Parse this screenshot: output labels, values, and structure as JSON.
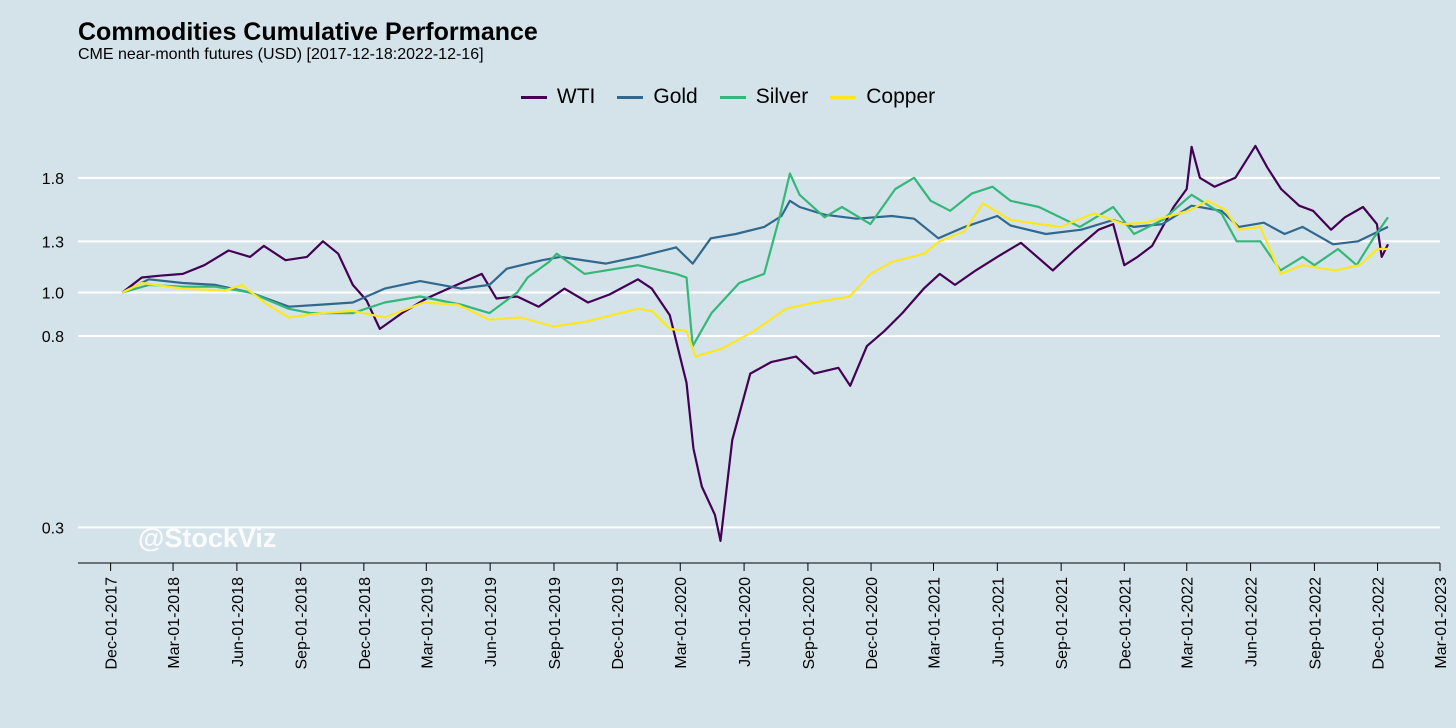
{
  "chart_data": {
    "type": "line",
    "title": "Commodities Cumulative Performance",
    "subtitle": "CME near-month futures (USD) [2017-12-18:2022-12-16]",
    "xlabel": "",
    "ylabel": "",
    "y_scale": "log",
    "ylim": [
      0.25,
      2.3
    ],
    "y_ticks": [
      0.3,
      0.8,
      1.0,
      1.3,
      1.8
    ],
    "y_tick_labels": [
      "0.3",
      "0.8",
      "1.0",
      "1.3",
      "1.8"
    ],
    "xlim": [
      "2017-10-15",
      "2023-03-01"
    ],
    "x_ticks": [
      "2017-12-01",
      "2018-03-01",
      "2018-06-01",
      "2018-09-01",
      "2018-12-01",
      "2019-03-01",
      "2019-06-01",
      "2019-09-01",
      "2019-12-01",
      "2020-03-01",
      "2020-06-01",
      "2020-09-01",
      "2020-12-01",
      "2021-03-01",
      "2021-06-01",
      "2021-09-01",
      "2021-12-01",
      "2022-03-01",
      "2022-06-01",
      "2022-09-01",
      "2022-12-01",
      "2023-03-01"
    ],
    "x_tick_labels": [
      "Dec-01-2017",
      "Mar-01-2018",
      "Jun-01-2018",
      "Sep-01-2018",
      "Dec-01-2018",
      "Mar-01-2019",
      "Jun-01-2019",
      "Sep-01-2019",
      "Dec-01-2019",
      "Mar-01-2020",
      "Jun-01-2020",
      "Sep-01-2020",
      "Dec-01-2020",
      "Mar-01-2021",
      "Jun-01-2021",
      "Sep-01-2021",
      "Dec-01-2021",
      "Mar-01-2022",
      "Jun-01-2022",
      "Sep-01-2022",
      "Dec-01-2022",
      "Mar-01-2023"
    ],
    "grid": "horizontal",
    "legend_position": "top",
    "watermark": "@StockViz",
    "series": [
      {
        "name": "WTI",
        "color": "#440154",
        "points": [
          [
            "2017-12-18",
            1.0
          ],
          [
            "2018-01-15",
            1.08
          ],
          [
            "2018-02-10",
            1.09
          ],
          [
            "2018-03-15",
            1.1
          ],
          [
            "2018-04-15",
            1.15
          ],
          [
            "2018-05-20",
            1.24
          ],
          [
            "2018-06-20",
            1.2
          ],
          [
            "2018-07-10",
            1.27
          ],
          [
            "2018-08-10",
            1.18
          ],
          [
            "2018-09-10",
            1.2
          ],
          [
            "2018-10-03",
            1.3
          ],
          [
            "2018-10-25",
            1.22
          ],
          [
            "2018-11-15",
            1.04
          ],
          [
            "2018-12-05",
            0.96
          ],
          [
            "2018-12-24",
            0.83
          ],
          [
            "2019-01-25",
            0.9
          ],
          [
            "2019-03-01",
            0.97
          ],
          [
            "2019-04-20",
            1.05
          ],
          [
            "2019-05-20",
            1.1
          ],
          [
            "2019-06-10",
            0.97
          ],
          [
            "2019-07-10",
            0.98
          ],
          [
            "2019-08-10",
            0.93
          ],
          [
            "2019-09-16",
            1.02
          ],
          [
            "2019-10-20",
            0.95
          ],
          [
            "2019-11-20",
            0.99
          ],
          [
            "2019-12-31",
            1.07
          ],
          [
            "2020-01-20",
            1.02
          ],
          [
            "2020-02-15",
            0.89
          ],
          [
            "2020-03-10",
            0.63
          ],
          [
            "2020-03-20",
            0.45
          ],
          [
            "2020-04-01",
            0.37
          ],
          [
            "2020-04-20",
            0.32
          ],
          [
            "2020-04-28",
            0.28
          ],
          [
            "2020-05-15",
            0.47
          ],
          [
            "2020-06-10",
            0.66
          ],
          [
            "2020-07-10",
            0.7
          ],
          [
            "2020-08-15",
            0.72
          ],
          [
            "2020-09-10",
            0.66
          ],
          [
            "2020-10-15",
            0.68
          ],
          [
            "2020-11-01",
            0.62
          ],
          [
            "2020-11-25",
            0.76
          ],
          [
            "2020-12-20",
            0.82
          ],
          [
            "2021-01-15",
            0.9
          ],
          [
            "2021-02-15",
            1.02
          ],
          [
            "2021-03-10",
            1.1
          ],
          [
            "2021-04-01",
            1.04
          ],
          [
            "2021-05-01",
            1.12
          ],
          [
            "2021-06-01",
            1.2
          ],
          [
            "2021-07-05",
            1.29
          ],
          [
            "2021-08-20",
            1.12
          ],
          [
            "2021-09-20",
            1.24
          ],
          [
            "2021-10-25",
            1.38
          ],
          [
            "2021-11-15",
            1.42
          ],
          [
            "2021-12-01",
            1.15
          ],
          [
            "2021-12-20",
            1.2
          ],
          [
            "2022-01-10",
            1.27
          ],
          [
            "2022-02-10",
            1.55
          ],
          [
            "2022-03-01",
            1.7
          ],
          [
            "2022-03-08",
            2.11
          ],
          [
            "2022-03-20",
            1.8
          ],
          [
            "2022-04-10",
            1.72
          ],
          [
            "2022-05-10",
            1.8
          ],
          [
            "2022-06-08",
            2.12
          ],
          [
            "2022-06-25",
            1.9
          ],
          [
            "2022-07-15",
            1.7
          ],
          [
            "2022-08-10",
            1.56
          ],
          [
            "2022-08-30",
            1.52
          ],
          [
            "2022-09-25",
            1.38
          ],
          [
            "2022-10-15",
            1.47
          ],
          [
            "2022-11-10",
            1.55
          ],
          [
            "2022-11-30",
            1.42
          ],
          [
            "2022-12-07",
            1.2
          ],
          [
            "2022-12-16",
            1.28
          ]
        ]
      },
      {
        "name": "Gold",
        "color": "#30688e",
        "points": [
          [
            "2017-12-18",
            1.0
          ],
          [
            "2018-01-25",
            1.07
          ],
          [
            "2018-03-15",
            1.05
          ],
          [
            "2018-05-01",
            1.04
          ],
          [
            "2018-06-20",
            1.0
          ],
          [
            "2018-08-15",
            0.93
          ],
          [
            "2018-10-01",
            0.94
          ],
          [
            "2018-11-15",
            0.95
          ],
          [
            "2018-12-31",
            1.02
          ],
          [
            "2019-02-20",
            1.06
          ],
          [
            "2019-04-20",
            1.02
          ],
          [
            "2019-05-31",
            1.04
          ],
          [
            "2019-06-25",
            1.13
          ],
          [
            "2019-08-15",
            1.18
          ],
          [
            "2019-09-10",
            1.2
          ],
          [
            "2019-11-15",
            1.16
          ],
          [
            "2019-12-31",
            1.2
          ],
          [
            "2020-02-24",
            1.26
          ],
          [
            "2020-03-19",
            1.16
          ],
          [
            "2020-04-14",
            1.32
          ],
          [
            "2020-05-20",
            1.35
          ],
          [
            "2020-06-30",
            1.4
          ],
          [
            "2020-07-25",
            1.48
          ],
          [
            "2020-08-06",
            1.6
          ],
          [
            "2020-08-20",
            1.55
          ],
          [
            "2020-09-25",
            1.49
          ],
          [
            "2020-11-10",
            1.46
          ],
          [
            "2020-12-31",
            1.48
          ],
          [
            "2021-02-01",
            1.46
          ],
          [
            "2021-03-08",
            1.32
          ],
          [
            "2021-04-15",
            1.4
          ],
          [
            "2021-06-01",
            1.48
          ],
          [
            "2021-06-20",
            1.41
          ],
          [
            "2021-08-10",
            1.35
          ],
          [
            "2021-09-30",
            1.38
          ],
          [
            "2021-11-15",
            1.45
          ],
          [
            "2021-12-15",
            1.4
          ],
          [
            "2022-01-25",
            1.42
          ],
          [
            "2022-03-08",
            1.56
          ],
          [
            "2022-04-20",
            1.52
          ],
          [
            "2022-05-15",
            1.4
          ],
          [
            "2022-06-20",
            1.43
          ],
          [
            "2022-07-20",
            1.35
          ],
          [
            "2022-08-15",
            1.4
          ],
          [
            "2022-09-28",
            1.28
          ],
          [
            "2022-11-03",
            1.3
          ],
          [
            "2022-12-16",
            1.4
          ]
        ]
      },
      {
        "name": "Silver",
        "color": "#35b779",
        "points": [
          [
            "2017-12-18",
            1.0
          ],
          [
            "2018-01-25",
            1.04
          ],
          [
            "2018-03-15",
            1.03
          ],
          [
            "2018-05-01",
            1.03
          ],
          [
            "2018-06-20",
            1.0
          ],
          [
            "2018-08-15",
            0.92
          ],
          [
            "2018-09-15",
            0.9
          ],
          [
            "2018-11-15",
            0.9
          ],
          [
            "2018-12-31",
            0.95
          ],
          [
            "2019-02-20",
            0.98
          ],
          [
            "2019-04-20",
            0.94
          ],
          [
            "2019-05-31",
            0.9
          ],
          [
            "2019-07-10",
            1.0
          ],
          [
            "2019-07-25",
            1.08
          ],
          [
            "2019-08-25",
            1.17
          ],
          [
            "2019-09-05",
            1.22
          ],
          [
            "2019-10-15",
            1.1
          ],
          [
            "2019-12-31",
            1.15
          ],
          [
            "2020-02-24",
            1.1
          ],
          [
            "2020-03-10",
            1.08
          ],
          [
            "2020-03-19",
            0.76
          ],
          [
            "2020-04-15",
            0.9
          ],
          [
            "2020-05-25",
            1.05
          ],
          [
            "2020-06-30",
            1.1
          ],
          [
            "2020-07-22",
            1.47
          ],
          [
            "2020-08-06",
            1.84
          ],
          [
            "2020-08-20",
            1.65
          ],
          [
            "2020-09-25",
            1.47
          ],
          [
            "2020-10-20",
            1.55
          ],
          [
            "2020-11-30",
            1.42
          ],
          [
            "2021-01-05",
            1.7
          ],
          [
            "2021-02-01",
            1.8
          ],
          [
            "2021-02-25",
            1.6
          ],
          [
            "2021-03-25",
            1.52
          ],
          [
            "2021-04-25",
            1.66
          ],
          [
            "2021-05-25",
            1.72
          ],
          [
            "2021-06-20",
            1.6
          ],
          [
            "2021-07-31",
            1.55
          ],
          [
            "2021-09-28",
            1.4
          ],
          [
            "2021-11-15",
            1.55
          ],
          [
            "2021-12-15",
            1.35
          ],
          [
            "2022-01-25",
            1.45
          ],
          [
            "2022-03-08",
            1.65
          ],
          [
            "2022-04-20",
            1.5
          ],
          [
            "2022-05-12",
            1.3
          ],
          [
            "2022-06-15",
            1.3
          ],
          [
            "2022-07-14",
            1.12
          ],
          [
            "2022-08-15",
            1.2
          ],
          [
            "2022-09-01",
            1.15
          ],
          [
            "2022-10-05",
            1.25
          ],
          [
            "2022-11-01",
            1.15
          ],
          [
            "2022-11-25",
            1.32
          ],
          [
            "2022-12-16",
            1.47
          ]
        ]
      },
      {
        "name": "Copper",
        "color": "#fde725",
        "points": [
          [
            "2017-12-18",
            1.0
          ],
          [
            "2018-01-15",
            1.05
          ],
          [
            "2018-03-15",
            1.02
          ],
          [
            "2018-05-15",
            1.01
          ],
          [
            "2018-06-08",
            1.04
          ],
          [
            "2018-07-15",
            0.94
          ],
          [
            "2018-08-15",
            0.88
          ],
          [
            "2018-09-30",
            0.9
          ],
          [
            "2018-11-15",
            0.91
          ],
          [
            "2018-12-31",
            0.88
          ],
          [
            "2019-02-25",
            0.95
          ],
          [
            "2019-04-15",
            0.94
          ],
          [
            "2019-05-31",
            0.87
          ],
          [
            "2019-07-15",
            0.88
          ],
          [
            "2019-08-31",
            0.84
          ],
          [
            "2019-10-15",
            0.86
          ],
          [
            "2019-12-31",
            0.92
          ],
          [
            "2020-01-20",
            0.91
          ],
          [
            "2020-02-15",
            0.83
          ],
          [
            "2020-03-10",
            0.82
          ],
          [
            "2020-03-23",
            0.72
          ],
          [
            "2020-04-30",
            0.75
          ],
          [
            "2020-06-15",
            0.82
          ],
          [
            "2020-07-31",
            0.92
          ],
          [
            "2020-09-10",
            0.95
          ],
          [
            "2020-10-31",
            0.98
          ],
          [
            "2020-11-30",
            1.1
          ],
          [
            "2020-12-31",
            1.17
          ],
          [
            "2021-02-15",
            1.22
          ],
          [
            "2021-03-10",
            1.3
          ],
          [
            "2021-04-15",
            1.37
          ],
          [
            "2021-05-11",
            1.58
          ],
          [
            "2021-06-20",
            1.45
          ],
          [
            "2021-07-31",
            1.42
          ],
          [
            "2021-08-31",
            1.4
          ],
          [
            "2021-10-18",
            1.5
          ],
          [
            "2021-11-30",
            1.42
          ],
          [
            "2021-12-31",
            1.43
          ],
          [
            "2022-03-04",
            1.52
          ],
          [
            "2022-03-31",
            1.6
          ],
          [
            "2022-04-25",
            1.53
          ],
          [
            "2022-05-15",
            1.38
          ],
          [
            "2022-06-15",
            1.4
          ],
          [
            "2022-07-14",
            1.1
          ],
          [
            "2022-08-15",
            1.15
          ],
          [
            "2022-09-30",
            1.12
          ],
          [
            "2022-11-05",
            1.15
          ],
          [
            "2022-12-01",
            1.25
          ],
          [
            "2022-12-16",
            1.25
          ]
        ]
      }
    ]
  }
}
